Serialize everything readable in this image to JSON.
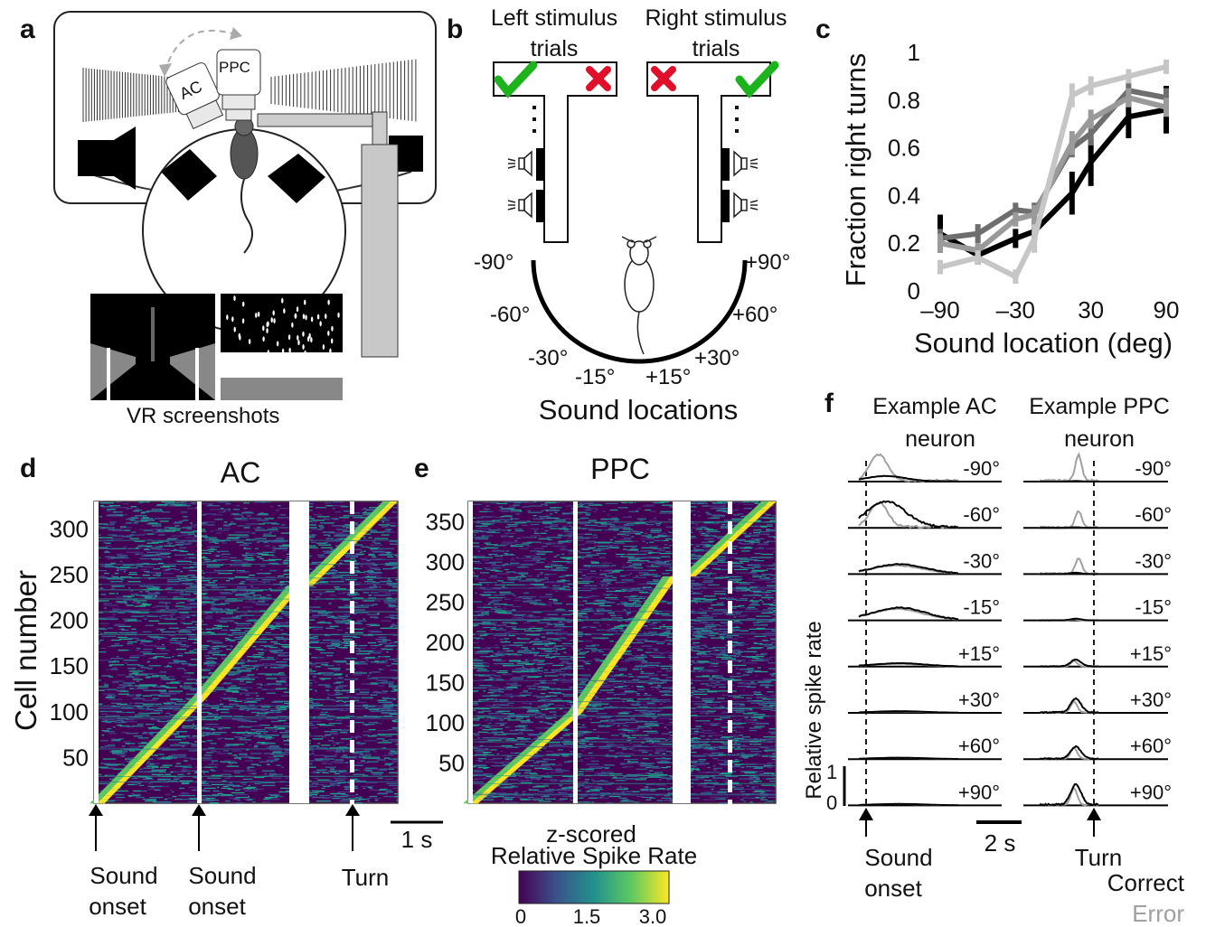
{
  "panel_letters": {
    "a": "a",
    "b": "b",
    "c": "c",
    "d": "d",
    "e": "e",
    "f": "f"
  },
  "panel_a": {
    "ac_label": "AC",
    "ppc_label": "PPC",
    "caption": "VR screenshots"
  },
  "panel_b": {
    "left_title_1": "Left stimulus",
    "left_title_2": "trials",
    "right_title_1": "Right stimulus",
    "right_title_2": "trials",
    "angles_left": [
      "-90°",
      "-60°",
      "-30°",
      "-15°"
    ],
    "angles_right": [
      "+90°",
      "+60°",
      "+30°",
      "+15°"
    ],
    "caption": "Sound locations",
    "colors": {
      "correct": "#1db31d",
      "incorrect": "#e0102a"
    }
  },
  "chart_data": [
    {
      "panel": "c",
      "type": "line",
      "xlabel": "Sound location (deg)",
      "ylabel": "Fraction right turns",
      "xlim": [
        -90,
        90
      ],
      "ylim": [
        0,
        1
      ],
      "x": [
        -90,
        -60,
        -30,
        -15,
        15,
        30,
        60,
        90
      ],
      "xticks": [
        "–90",
        "–30",
        "30",
        "90"
      ],
      "yticks": [
        "0",
        "0.2",
        "0.4",
        "0.6",
        "0.8",
        "1"
      ],
      "series": [
        {
          "color": "#000000",
          "values": [
            0.24,
            0.15,
            0.22,
            0.25,
            0.41,
            0.54,
            0.73,
            0.76
          ],
          "err": [
            0.08,
            0.04,
            0.04,
            0.04,
            0.09,
            0.1,
            0.09,
            0.1
          ]
        },
        {
          "color": "#6e6e6e",
          "values": [
            0.22,
            0.24,
            0.34,
            0.33,
            0.6,
            0.66,
            0.84,
            0.81
          ],
          "err": [
            0.04,
            0.04,
            0.03,
            0.04,
            0.04,
            0.05,
            0.04,
            0.04
          ]
        },
        {
          "color": "#9a9a9a",
          "values": [
            0.2,
            0.17,
            0.3,
            0.32,
            0.62,
            0.72,
            0.81,
            0.77
          ],
          "err": [
            0.04,
            0.03,
            0.03,
            0.04,
            0.05,
            0.04,
            0.04,
            0.04
          ]
        },
        {
          "color": "#c6c6c6",
          "values": [
            0.1,
            0.14,
            0.06,
            0.22,
            0.82,
            0.86,
            0.9,
            0.94
          ],
          "err": [
            0.03,
            0.03,
            0.03,
            0.06,
            0.05,
            0.04,
            0.03,
            0.03
          ]
        }
      ]
    },
    {
      "panel": "d",
      "type": "heatmap",
      "title": "AC",
      "ylabel": "Cell number",
      "n_cells": 330,
      "yticks": [
        50,
        100,
        150,
        200,
        250,
        300
      ],
      "event_labels": [
        "Sound onset",
        "Sound onset",
        "Turn"
      ],
      "scalebar": "1 s"
    },
    {
      "panel": "e",
      "type": "heatmap",
      "title": "PPC",
      "n_cells": 375,
      "yticks": [
        50,
        100,
        150,
        200,
        250,
        300,
        350
      ],
      "colorbar_title_1": "z-scored",
      "colorbar_title_2": "Relative Spike Rate",
      "colorbar_ticks": [
        "0",
        "1.5",
        "3.0"
      ],
      "colormap": [
        "#440154",
        "#3b528b",
        "#21918c",
        "#5ec962",
        "#fde725"
      ]
    },
    {
      "panel": "f",
      "type": "line",
      "left_title_1": "Example AC",
      "left_title_2": "neuron",
      "right_title_1": "Example PPC",
      "right_title_2": "neuron",
      "ylabel": "Relative spike rate",
      "rows": [
        "-90°",
        "-60°",
        "-30°",
        "-15°",
        "+15°",
        "+30°",
        "+60°",
        "+90°"
      ],
      "scale_y_top": "1",
      "scale_y_bottom": "0",
      "scale_x": "2 s",
      "left_event": "Sound onset",
      "left_event_1": "Sound",
      "left_event_2": "onset",
      "right_event": "Turn",
      "legend": [
        {
          "name": "Correct",
          "color": "#000000"
        },
        {
          "name": "Error",
          "color": "#a0a0a0"
        }
      ],
      "ac_peak_correct": [
        0.2,
        0.95,
        0.35,
        0.45,
        0.12,
        0.06,
        0.05,
        0.05
      ],
      "ac_peak_error": [
        0.95,
        0.9,
        0.3,
        0.4,
        0.1,
        0.05,
        0.05,
        0.05
      ],
      "ppc_peak_correct": [
        0.02,
        0.02,
        0.05,
        0.06,
        0.25,
        0.5,
        0.45,
        0.75
      ],
      "ppc_peak_error": [
        0.95,
        0.6,
        0.55,
        0.04,
        0.2,
        0.4,
        0.4,
        0.6
      ]
    }
  ]
}
